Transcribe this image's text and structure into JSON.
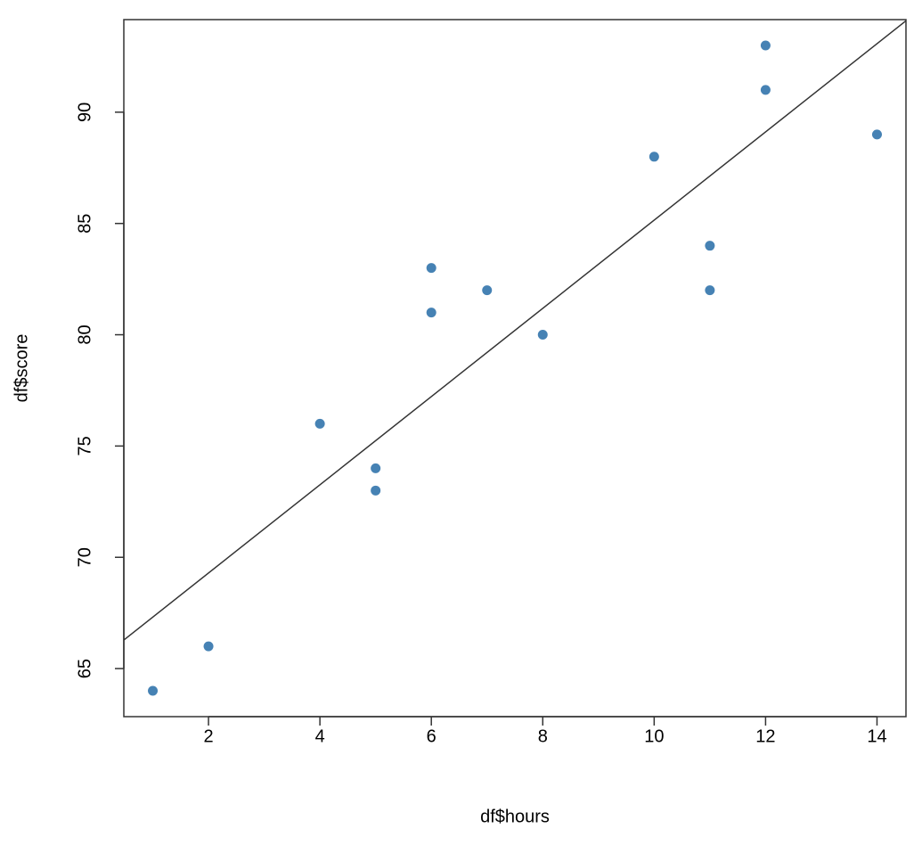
{
  "chart_data": {
    "type": "scatter",
    "x_label": "df$hours",
    "y_label": "df$score",
    "series": [
      {
        "color": "#4682b4",
        "x": [
          1,
          2,
          4,
          5,
          5,
          6,
          6,
          7,
          8,
          10,
          11,
          11,
          12,
          12,
          14
        ],
        "values": [
          64,
          66,
          76,
          74,
          73,
          81,
          83,
          82,
          80,
          88,
          82,
          84,
          91,
          93,
          89
        ]
      }
    ],
    "fit_line": {
      "intercept": 65.33,
      "slope": 1.982,
      "color": "#333333"
    },
    "xlim": [
      0.48,
      14.52
    ],
    "ylim": [
      62.84,
      94.16
    ],
    "xticks": [
      2,
      4,
      6,
      8,
      10,
      12,
      14
    ],
    "yticks": [
      65,
      70,
      75,
      80,
      85,
      90
    ]
  }
}
